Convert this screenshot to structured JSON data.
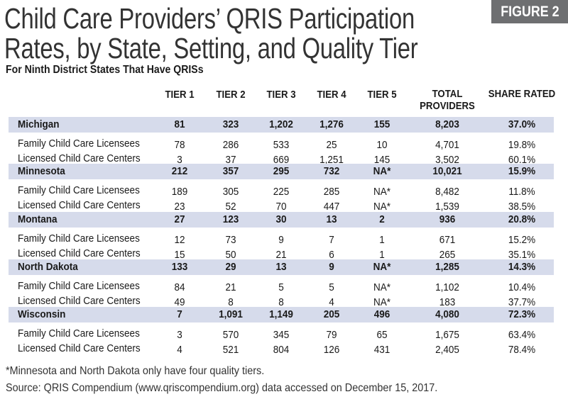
{
  "title_line1": "Child Care Providers’ QRIS Participation",
  "title_line2": "Rates, by State, Setting, and Quality Tier",
  "figure_label": "FIGURE 2",
  "subtitle": "For Ninth District States That Have QRISs",
  "header_color": "#d6dbeb",
  "chart_data": {
    "type": "table",
    "columns": [
      "TIER 1",
      "TIER 2",
      "TIER 3",
      "TIER 4",
      "TIER 5",
      "TOTAL PROVIDERS",
      "SHARE RATED"
    ],
    "groups": [
      {
        "state": "Michigan",
        "values": [
          "81",
          "323",
          "1,202",
          "1,276",
          "155",
          "8,203",
          "37.0%"
        ],
        "rows": [
          {
            "label": "Family Child Care Licensees",
            "values": [
              "78",
              "286",
              "533",
              "25",
              "10",
              "4,701",
              "19.8%"
            ]
          },
          {
            "label": "Licensed Child Care Centers",
            "values": [
              "3",
              "37",
              "669",
              "1,251",
              "145",
              "3,502",
              "60.1%"
            ]
          }
        ]
      },
      {
        "state": "Minnesota",
        "values": [
          "212",
          "357",
          "295",
          "732",
          "NA*",
          "10,021",
          "15.9%"
        ],
        "rows": [
          {
            "label": "Family Child Care Licensees",
            "values": [
              "189",
              "305",
              "225",
              "285",
              "NA*",
              "8,482",
              "11.8%"
            ]
          },
          {
            "label": "Licensed Child Care Centers",
            "values": [
              "23",
              "52",
              "70",
              "447",
              "NA*",
              "1,539",
              "38.5%"
            ]
          }
        ]
      },
      {
        "state": "Montana",
        "values": [
          "27",
          "123",
          "30",
          "13",
          "2",
          "936",
          "20.8%"
        ],
        "rows": [
          {
            "label": "Family Child Care Licensees",
            "values": [
              "12",
              "73",
              "9",
              "7",
              "1",
              "671",
              "15.2%"
            ]
          },
          {
            "label": "Licensed Child Care Centers",
            "values": [
              "15",
              "50",
              "21",
              "6",
              "1",
              "265",
              "35.1%"
            ]
          }
        ]
      },
      {
        "state": "North Dakota",
        "values": [
          "133",
          "29",
          "13",
          "9",
          "NA*",
          "1,285",
          "14.3%"
        ],
        "rows": [
          {
            "label": "Family Child Care Licensees",
            "values": [
              "84",
              "21",
              "5",
              "5",
              "NA*",
              "1,102",
              "10.4%"
            ]
          },
          {
            "label": "Licensed Child Care Centers",
            "values": [
              "49",
              "8",
              "8",
              "4",
              "NA*",
              "183",
              "37.7%"
            ]
          }
        ]
      },
      {
        "state": "Wisconsin",
        "values": [
          "7",
          "1,091",
          "1,149",
          "205",
          "496",
          "4,080",
          "72.3%"
        ],
        "rows": [
          {
            "label": "Family Child Care Licensees",
            "values": [
              "3",
              "570",
              "345",
              "79",
              "65",
              "1,675",
              "63.4%"
            ]
          },
          {
            "label": "Licensed Child Care Centers",
            "values": [
              "4",
              "521",
              "804",
              "126",
              "431",
              "2,405",
              "78.4%"
            ]
          }
        ]
      }
    ]
  },
  "footnote": "*Minnesota and North Dakota only have four quality tiers.",
  "source": "Source: QRIS Compendium (www.qriscompendium.org) data accessed on December 15, 2017."
}
